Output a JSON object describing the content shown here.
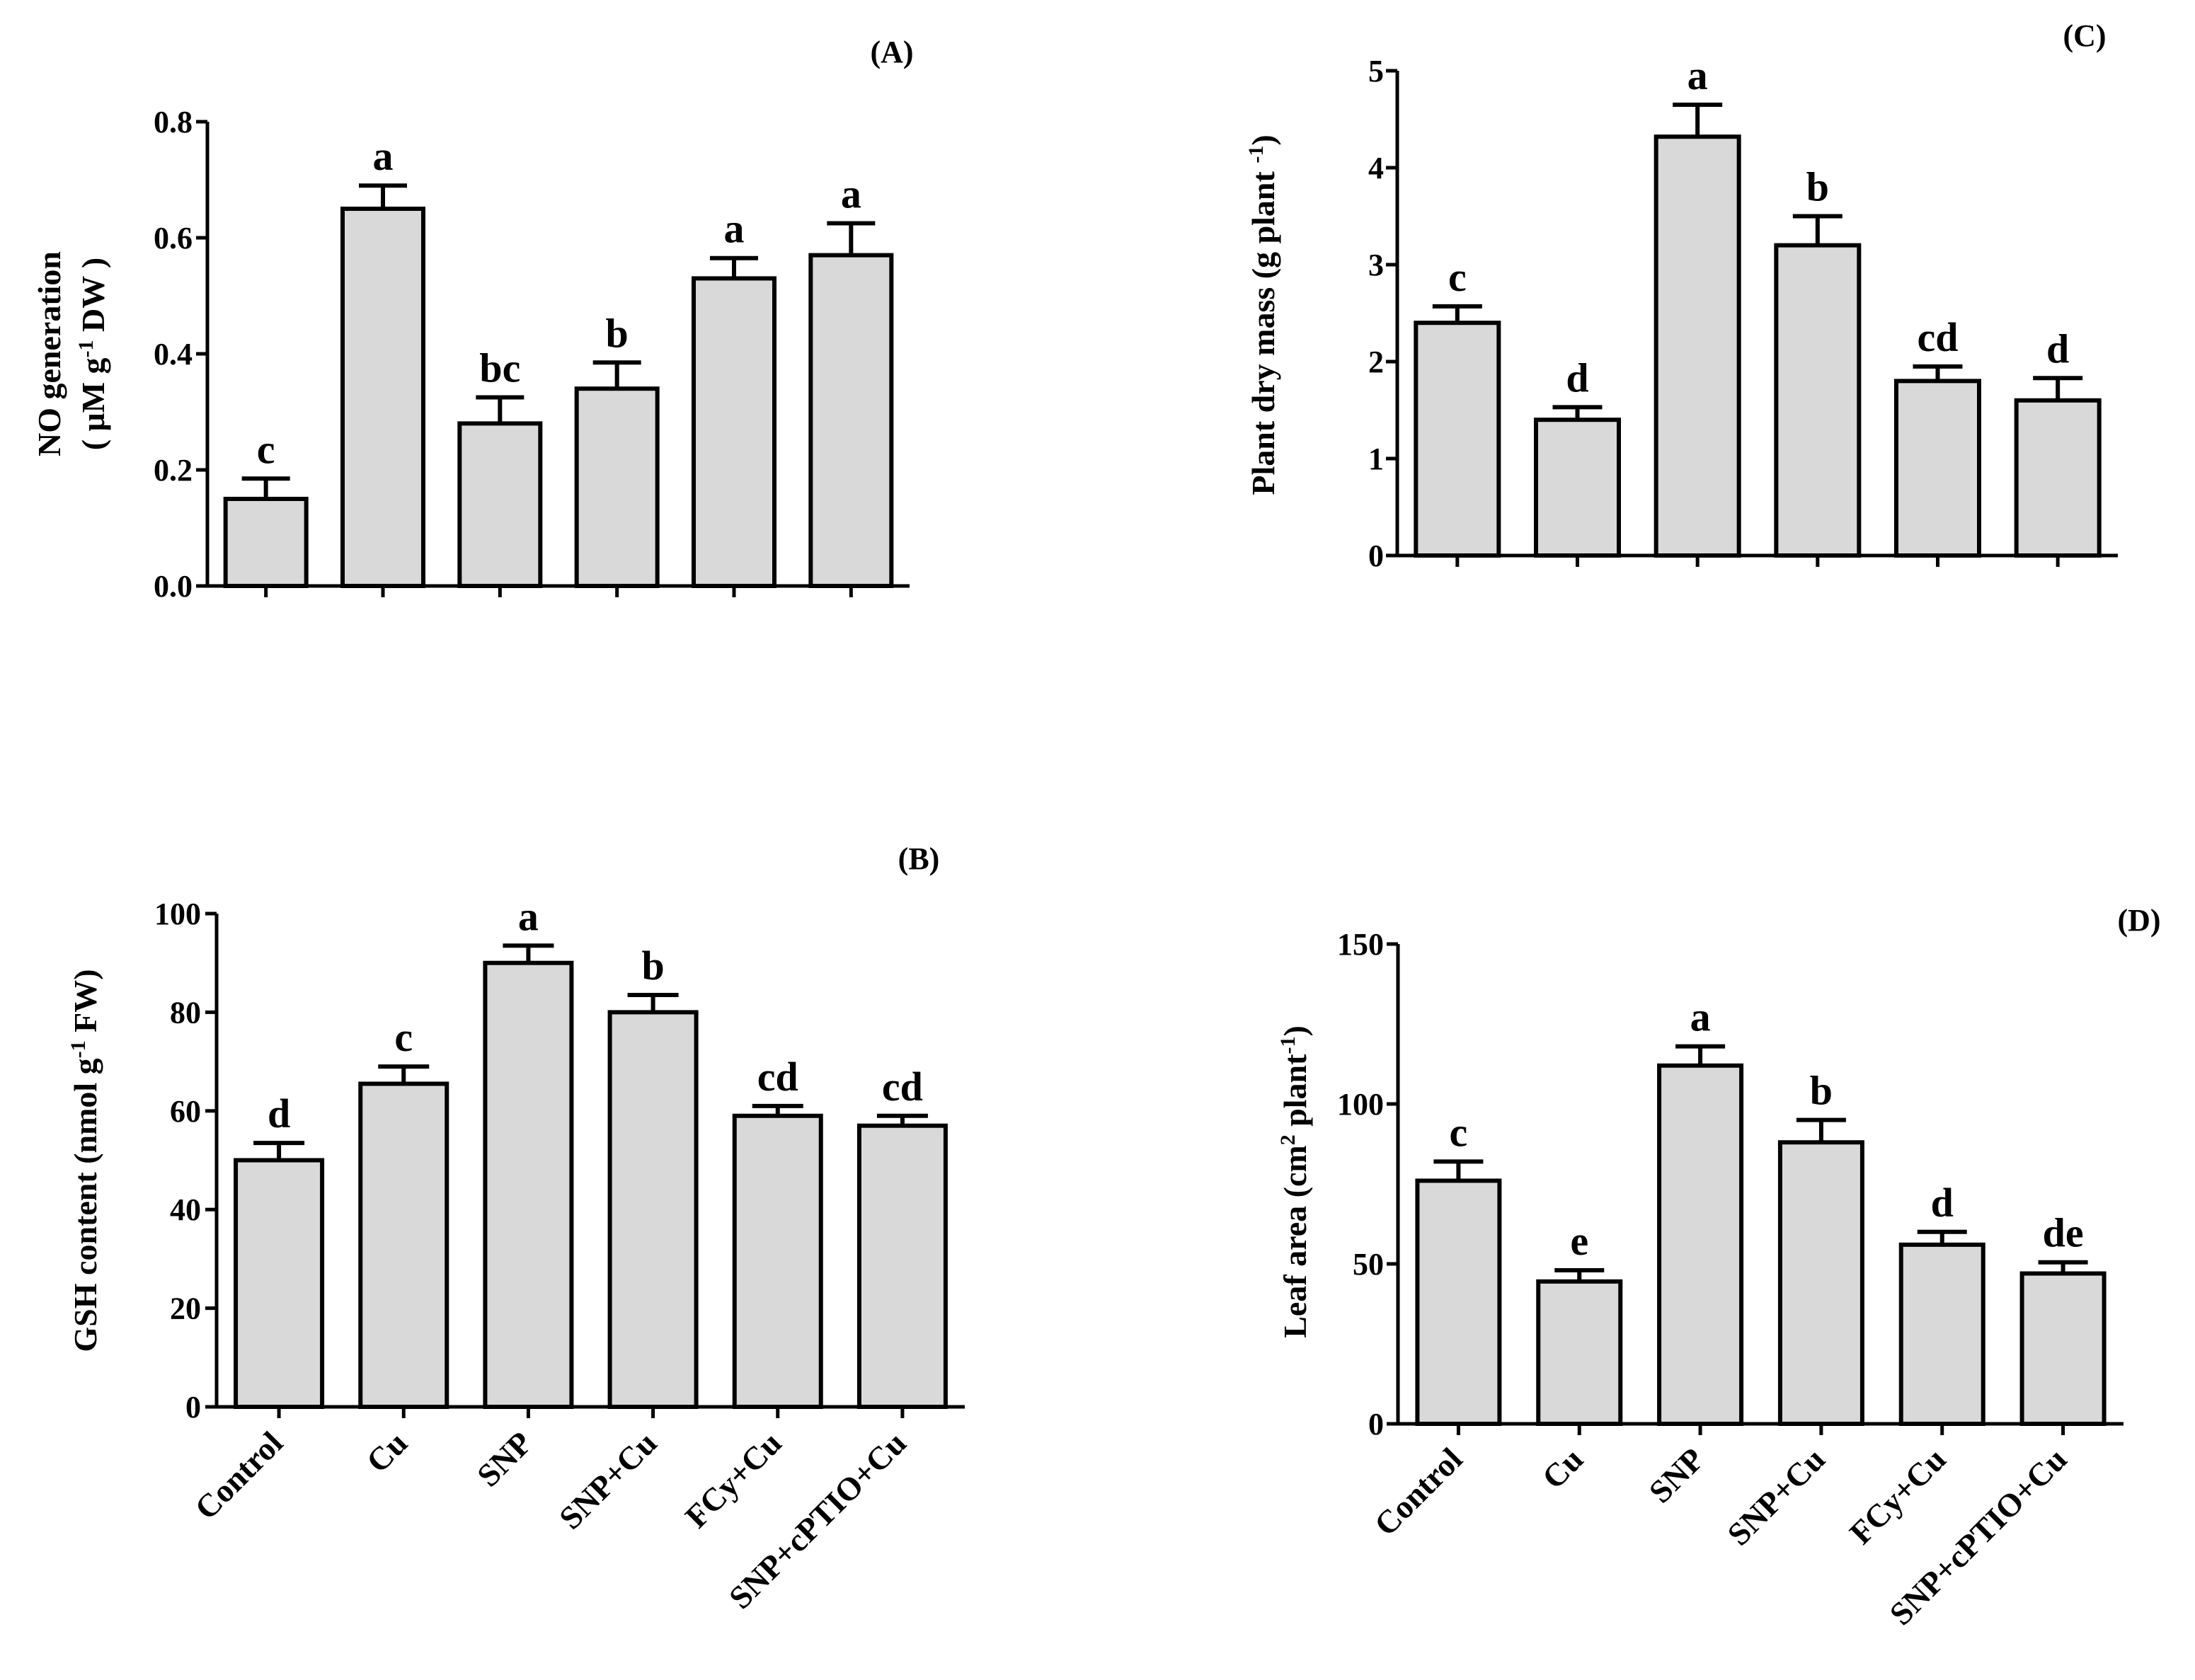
{
  "figure": {
    "categories": [
      "Control",
      "Cu",
      "SNP",
      "SNP+Cu",
      "FCy+Cu",
      "SNP+cPTIO+Cu"
    ]
  },
  "colors": {
    "bar_fill": "#d9d9d9",
    "stroke": "#000000",
    "background": "#ffffff"
  },
  "chart_data": [
    {
      "id": "A",
      "type": "bar",
      "panel_label": "(A)",
      "title": "",
      "ylabel": "NO generation ( μM g-1 DW )",
      "ylabel_lines": [
        [
          {
            "t": "NO generation"
          }
        ],
        [
          {
            "t": "( μM g"
          },
          {
            "t": "-1",
            "sup": true
          },
          {
            "t": " DW )"
          }
        ]
      ],
      "categories": [
        "Control",
        "Cu",
        "SNP",
        "SNP+Cu",
        "FCy+Cu",
        "SNP+cPTIO+Cu"
      ],
      "show_category_labels": false,
      "values": [
        0.15,
        0.65,
        0.28,
        0.34,
        0.53,
        0.57
      ],
      "errors": [
        0.035,
        0.04,
        0.045,
        0.045,
        0.035,
        0.055
      ],
      "significance": [
        "c",
        "a",
        "bc",
        "b",
        "a",
        "a"
      ],
      "ylim": [
        0,
        0.8
      ],
      "yticks": [
        0.0,
        0.2,
        0.4,
        0.6,
        0.8
      ],
      "ytick_labels": [
        "0.0",
        "0.2",
        "0.4",
        "0.6",
        "0.8"
      ]
    },
    {
      "id": "B",
      "type": "bar",
      "panel_label": "(B)",
      "title": "",
      "ylabel": "GSH content (nmol g-1 FW)",
      "ylabel_lines": [
        [
          {
            "t": "GSH content (nmol g"
          },
          {
            "t": "-1",
            "sup": true
          },
          {
            "t": " FW)"
          }
        ]
      ],
      "categories": [
        "Control",
        "Cu",
        "SNP",
        "SNP+Cu",
        "FCy+Cu",
        "SNP+cPTIO+Cu"
      ],
      "show_category_labels": true,
      "values": [
        50,
        65.5,
        90,
        80,
        59,
        57
      ],
      "errors": [
        3.5,
        3.5,
        3.5,
        3.5,
        2,
        2
      ],
      "significance": [
        "d",
        "c",
        "a",
        "b",
        "cd",
        "cd"
      ],
      "ylim": [
        0,
        100
      ],
      "yticks": [
        0,
        20,
        40,
        60,
        80,
        100
      ],
      "ytick_labels": [
        "0",
        "20",
        "40",
        "60",
        "80",
        "100"
      ]
    },
    {
      "id": "C",
      "type": "bar",
      "panel_label": "(C)",
      "title": "",
      "ylabel": "Plant dry mass (g plant -1)",
      "ylabel_lines": [
        [
          {
            "t": "Plant dry mass (g plant "
          },
          {
            "t": "-1",
            "sup": true
          },
          {
            "t": ")"
          }
        ]
      ],
      "categories": [
        "Control",
        "Cu",
        "SNP",
        "SNP+Cu",
        "FCy+Cu",
        "SNP+cPTIO+Cu"
      ],
      "show_category_labels": false,
      "values": [
        2.4,
        1.4,
        4.32,
        3.2,
        1.8,
        1.6
      ],
      "errors": [
        0.17,
        0.13,
        0.33,
        0.3,
        0.15,
        0.23
      ],
      "significance": [
        "c",
        "d",
        "a",
        "b",
        "cd",
        "d"
      ],
      "ylim": [
        0,
        5
      ],
      "yticks": [
        0,
        1,
        2,
        3,
        4,
        5
      ],
      "ytick_labels": [
        "0",
        "1",
        "2",
        "3",
        "4",
        "5"
      ]
    },
    {
      "id": "D",
      "type": "bar",
      "panel_label": "(D)",
      "title": "",
      "ylabel": "Leaf area (cm2 plant-1)",
      "ylabel_lines": [
        [
          {
            "t": "Leaf area (cm"
          },
          {
            "t": "2",
            "sup": true
          },
          {
            "t": " plant"
          },
          {
            "t": "-1",
            "sup": true
          },
          {
            "t": ")"
          }
        ]
      ],
      "categories": [
        "Control",
        "Cu",
        "SNP",
        "SNP+Cu",
        "FCy+Cu",
        "SNP+cPTIO+Cu"
      ],
      "show_category_labels": true,
      "values": [
        76,
        44.5,
        112,
        88,
        56,
        47
      ],
      "errors": [
        6,
        3.5,
        6,
        7,
        4,
        3.5
      ],
      "significance": [
        "c",
        "e",
        "a",
        "b",
        "d",
        "de"
      ],
      "ylim": [
        0,
        150
      ],
      "yticks": [
        0,
        50,
        100,
        150
      ],
      "ytick_labels": [
        "0",
        "50",
        "100",
        "150"
      ]
    }
  ]
}
